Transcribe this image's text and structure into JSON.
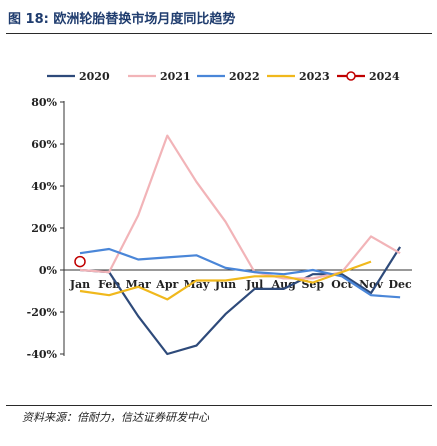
{
  "figure": {
    "label": "图 18:",
    "title": "欧洲轮胎替换市场月度同比趋势",
    "source": "资料来源：倍耐力，信达证券研发中心"
  },
  "chart_data": {
    "type": "line",
    "categories": [
      "Jan",
      "Feb",
      "Mar",
      "Apr",
      "May",
      "Jun",
      "Jul",
      "Aug",
      "Sep",
      "Oct",
      "Nov",
      "Dec"
    ],
    "ylim": [
      -40,
      80
    ],
    "yticks": [
      -40,
      -20,
      0,
      20,
      40,
      60,
      80
    ],
    "ytick_labels": [
      "-40%",
      "-20%",
      "0%",
      "20%",
      "40%",
      "60%",
      "80%"
    ],
    "y_unit": "%",
    "legend_position": "top",
    "grid": false,
    "series": [
      {
        "name": "2020",
        "color": "#2e4a7a",
        "values": [
          0,
          -1,
          -22,
          -40,
          -36,
          -21,
          -9,
          -9,
          -2,
          -2,
          -11,
          11
        ]
      },
      {
        "name": "2021",
        "color": "#f2b4b8",
        "values": [
          0,
          -1,
          26,
          64,
          42,
          23,
          -1,
          -4,
          -4,
          -1,
          16,
          8
        ]
      },
      {
        "name": "2022",
        "color": "#4a86d8",
        "values": [
          8,
          10,
          5,
          6,
          7,
          1,
          -1,
          -2,
          0,
          -3,
          -12,
          -13
        ]
      },
      {
        "name": "2023",
        "color": "#f0b81c",
        "values": [
          -10,
          -12,
          -8,
          -14,
          -5,
          -5,
          -3,
          -3,
          -6,
          -1,
          4,
          null
        ]
      },
      {
        "name": "2024",
        "color": "#c00000",
        "marker": "open-circle",
        "values": [
          4,
          null,
          null,
          null,
          null,
          null,
          null,
          null,
          null,
          null,
          null,
          null
        ]
      }
    ]
  }
}
